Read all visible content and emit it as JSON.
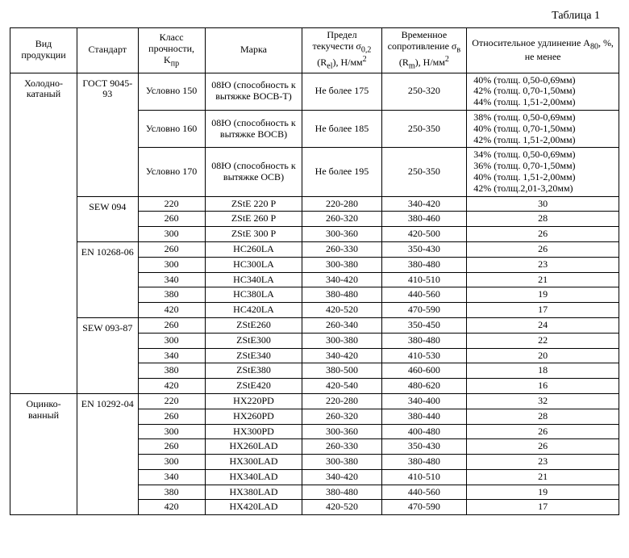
{
  "caption": "Таблица 1",
  "headers": {
    "product": "Вид продукции",
    "standard": "Стандарт",
    "strength": "Класс прочности, K",
    "strength_sub": "пр",
    "grade": "Марка",
    "yield": "Предел текучести σ",
    "yield_sub1": "0,2",
    "yield_mid": " (R",
    "yield_sub2": "el",
    "yield_end": "), Н/мм",
    "yield_sup": "2",
    "tensile": "Временное сопротивление σ",
    "tensile_sub1": "в",
    "tensile_mid": " (R",
    "tensile_sub2": "m",
    "tensile_end": "), Н/мм",
    "tensile_sup": "2",
    "elong": "Относительное удлинение A",
    "elong_sub": "80",
    "elong_end": ", %, не менее"
  },
  "products": {
    "cold_rolled": "Холодно-катаный",
    "galvanized": "Оцинко-ванный"
  },
  "standards": {
    "gost": "ГОСТ 9045-93",
    "sew094": "SEW 094",
    "en10268": "EN 10268-06",
    "sew093": "SEW 093-87",
    "en10292": "EN 10292-04"
  },
  "rows": {
    "g1": {
      "strength": "Условно 150",
      "grade": "08Ю (способность к вытяжке BOCB-T)",
      "yield": "Не более 175",
      "tensile": "250-320",
      "elong": [
        "40% (толщ. 0,50-0,69мм)",
        "42% (толщ. 0,70-1,50мм)",
        "44% (толщ. 1,51-2,00мм)"
      ]
    },
    "g2": {
      "strength": "Условно 160",
      "grade": "08Ю (способность к вытяжке BOCB)",
      "yield": "Не более 185",
      "tensile": "250-350",
      "elong": [
        "38% (толщ. 0,50-0,69мм)",
        "40% (толщ. 0,70-1,50мм)",
        "42% (толщ. 1,51-2,00мм)"
      ]
    },
    "g3": {
      "strength": "Условно 170",
      "grade": "08Ю (способность к вытяжке OCB)",
      "yield": "Не более 195",
      "tensile": "250-350",
      "elong": [
        "34% (толщ. 0,50-0,69мм)",
        "36% (толщ. 0,70-1,50мм)",
        "40% (толщ. 1,51-2,00мм)",
        "42% (толщ.2,01-3,20мм)"
      ]
    },
    "s094_1": {
      "strength": "220",
      "grade": "ZStE 220 P",
      "yield": "220-280",
      "tensile": "340-420",
      "elong": "30"
    },
    "s094_2": {
      "strength": "260",
      "grade": "ZStE 260 P",
      "yield": "260-320",
      "tensile": "380-460",
      "elong": "28"
    },
    "s094_3": {
      "strength": "300",
      "grade": "ZStE 300 P",
      "yield": "300-360",
      "tensile": "420-500",
      "elong": "26"
    },
    "en268_1": {
      "strength": "260",
      "grade": "HC260LA",
      "yield": "260-330",
      "tensile": "350-430",
      "elong": "26"
    },
    "en268_2": {
      "strength": "300",
      "grade": "HC300LA",
      "yield": "300-380",
      "tensile": "380-480",
      "elong": "23"
    },
    "en268_3": {
      "strength": "340",
      "grade": "HC340LA",
      "yield": "340-420",
      "tensile": "410-510",
      "elong": "21"
    },
    "en268_4": {
      "strength": "380",
      "grade": "HC380LA",
      "yield": "380-480",
      "tensile": "440-560",
      "elong": "19"
    },
    "en268_5": {
      "strength": "420",
      "grade": "HC420LA",
      "yield": "420-520",
      "tensile": "470-590",
      "elong": "17"
    },
    "s093_1": {
      "strength": "260",
      "grade": "ZStE260",
      "yield": "260-340",
      "tensile": "350-450",
      "elong": "24"
    },
    "s093_2": {
      "strength": "300",
      "grade": "ZStE300",
      "yield": "300-380",
      "tensile": "380-480",
      "elong": "22"
    },
    "s093_3": {
      "strength": "340",
      "grade": "ZStE340",
      "yield": "340-420",
      "tensile": "410-530",
      "elong": "20"
    },
    "s093_4": {
      "strength": "380",
      "grade": "ZStE380",
      "yield": "380-500",
      "tensile": "460-600",
      "elong": "18"
    },
    "s093_5": {
      "strength": "420",
      "grade": "ZStE420",
      "yield": "420-540",
      "tensile": "480-620",
      "elong": "16"
    },
    "en292_1": {
      "strength": "220",
      "grade": "HX220PD",
      "yield": "220-280",
      "tensile": "340-400",
      "elong": "32"
    },
    "en292_2": {
      "strength": "260",
      "grade": "HX260PD",
      "yield": "260-320",
      "tensile": "380-440",
      "elong": "28"
    },
    "en292_3": {
      "strength": "300",
      "grade": "HX300PD",
      "yield": "300-360",
      "tensile": "400-480",
      "elong": "26"
    },
    "en292_4": {
      "strength": "260",
      "grade": "HX260LAD",
      "yield": "260-330",
      "tensile": "350-430",
      "elong": "26"
    },
    "en292_5": {
      "strength": "300",
      "grade": "HX300LAD",
      "yield": "300-380",
      "tensile": "380-480",
      "elong": "23"
    },
    "en292_6": {
      "strength": "340",
      "grade": "HX340LAD",
      "yield": "340-420",
      "tensile": "410-510",
      "elong": "21"
    },
    "en292_7": {
      "strength": "380",
      "grade": "HX380LAD",
      "yield": "380-480",
      "tensile": "440-560",
      "elong": "19"
    },
    "en292_8": {
      "strength": "420",
      "grade": "HX420LAD",
      "yield": "420-520",
      "tensile": "470-590",
      "elong": "17"
    }
  }
}
